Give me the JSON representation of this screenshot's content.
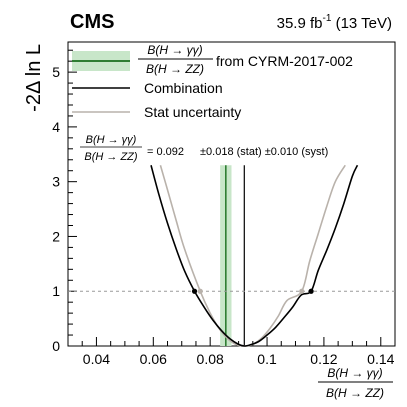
{
  "chart_data": {
    "type": "line",
    "header": {
      "experiment": "CMS",
      "luminosity_value": "35.9 fb",
      "luminosity_exp": "-1",
      "energy": "(13 TeV)"
    },
    "ylabel": "-2Δ ln L",
    "xlabel": {
      "num": "B(H → γγ)",
      "den": "B(H → ZZ)"
    },
    "xlim": [
      0.03,
      0.145
    ],
    "ylim": [
      0,
      5.55
    ],
    "x_ticks": [
      0.04,
      0.06,
      0.08,
      0.1,
      0.12,
      0.14
    ],
    "x_tick_labels": [
      "0.04",
      "0.06",
      "0.08",
      "0.1",
      "0.12",
      "0.14"
    ],
    "y_ticks": [
      0,
      1,
      2,
      3,
      4,
      5
    ],
    "y_tick_labels": [
      "0",
      "1",
      "2",
      "3",
      "4",
      "5"
    ],
    "legend": [
      {
        "label_num": "B(H → γγ)",
        "label_den": "B(H → ZZ)",
        "label_suffix": "from CYRM-2017-002",
        "color": "#2e7d32",
        "fill": "#c8e6c9"
      },
      {
        "label": "Combination",
        "color": "#000000"
      },
      {
        "label": "Stat uncertainty",
        "color": "#b9b2ab"
      }
    ],
    "result": {
      "num": "B(H → γγ)",
      "den": "B(H → ZZ)",
      "value_text": "= 0.092",
      "stat_text": "±0.018 (stat) ±0.010 (syst)"
    },
    "series": [
      {
        "name": "Combination",
        "color": "#000000",
        "x": [
          0.0592,
          0.062,
          0.065,
          0.068,
          0.071,
          0.0745,
          0.078,
          0.081,
          0.084,
          0.087,
          0.09,
          0.092,
          0.094,
          0.097,
          0.1,
          0.103,
          0.106,
          0.109,
          0.112,
          0.1155,
          0.118,
          0.121,
          0.124,
          0.127,
          0.13,
          0.1318
        ],
        "y": [
          3.3,
          2.76,
          2.24,
          1.78,
          1.37,
          1.0,
          0.7,
          0.47,
          0.28,
          0.13,
          0.03,
          0.0,
          0.02,
          0.08,
          0.2,
          0.34,
          0.52,
          0.71,
          0.93,
          1.0,
          1.38,
          1.75,
          2.15,
          2.6,
          3.1,
          3.3
        ]
      },
      {
        "name": "Stat uncertainty",
        "color": "#b9b2ab",
        "x": [
          0.0625,
          0.065,
          0.068,
          0.071,
          0.0765,
          0.08,
          0.083,
          0.086,
          0.089,
          0.092,
          0.095,
          0.098,
          0.101,
          0.104,
          0.107,
          0.1122,
          0.115,
          0.118,
          0.121,
          0.124,
          0.1275
        ],
        "y": [
          3.3,
          2.85,
          2.3,
          1.77,
          1.0,
          0.6,
          0.33,
          0.14,
          0.03,
          0.0,
          0.03,
          0.14,
          0.32,
          0.55,
          0.83,
          1.0,
          1.55,
          2.05,
          2.55,
          3.0,
          3.3
        ]
      }
    ],
    "reference": {
      "x": 0.0855,
      "band": [
        0.0835,
        0.0875
      ],
      "color": "#2e7d32",
      "band_color": "#c8e6c9"
    },
    "best_fit_x": 0.092,
    "hline_y": 1,
    "markers": [
      {
        "x": 0.0745,
        "y": 1,
        "color": "#000000"
      },
      {
        "x": 0.1155,
        "y": 1,
        "color": "#000000"
      },
      {
        "x": 0.0765,
        "y": 1,
        "color": "#b9b2ab"
      },
      {
        "x": 0.1122,
        "y": 1,
        "color": "#b9b2ab"
      }
    ]
  }
}
